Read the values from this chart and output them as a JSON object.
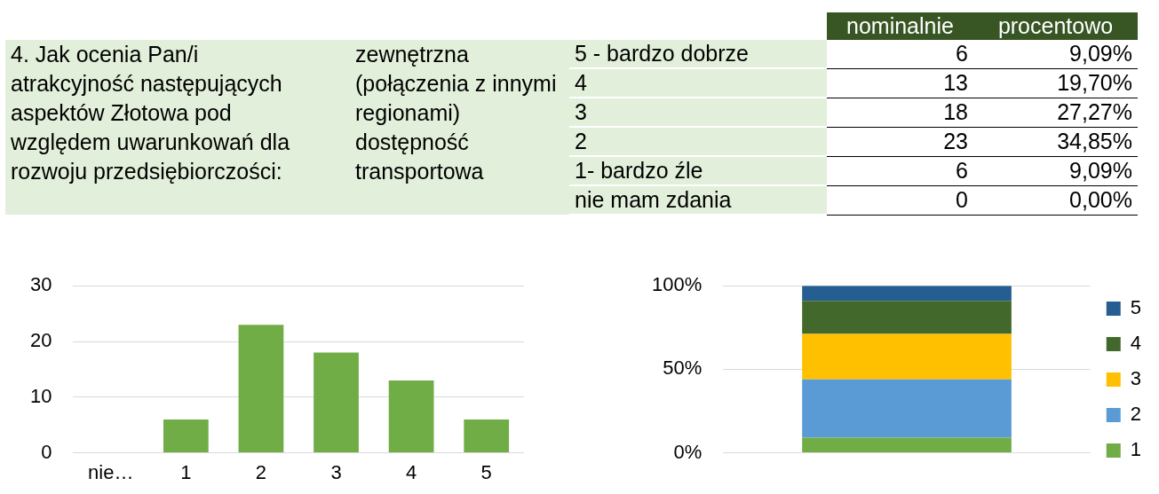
{
  "chart_data": [
    {
      "type": "other",
      "data_labels": true,
      "title": "4. Jak ocenia Pan/i atrakcyjność następujących aspektów Złotowa pod względem uwarunkowań dla rozwoju przedsiębiorczości:",
      "subtitle": "zewnętrzna (połączenia z innymi regionami) dostępność transportowa",
      "categories": [
        "5 - bardzo dobrze",
        "4",
        "3",
        "2",
        "1- bardzo źle",
        "nie mam zdania"
      ],
      "series": [
        {
          "name": "nominalnie",
          "values": [
            6,
            13,
            18,
            23,
            6,
            0
          ]
        },
        {
          "name": "procentowo",
          "values": [
            9.09,
            19.7,
            27.27,
            34.85,
            9.09,
            0.0
          ],
          "value_labels": [
            "9,09%",
            "19,70%",
            "27,27%",
            "34,85%",
            "9,09%",
            "0,00%"
          ]
        }
      ]
    },
    {
      "type": "bar",
      "categories": [
        "nie…",
        "1",
        "2",
        "3",
        "4",
        "5"
      ],
      "values": [
        0,
        6,
        23,
        18,
        13,
        6
      ],
      "color": "#70ad47",
      "ylim": [
        0,
        30
      ],
      "yticks": [
        0,
        10,
        20,
        30
      ],
      "grid": "y"
    },
    {
      "type": "bar",
      "stacked": true,
      "categories": [
        null
      ],
      "ylim": [
        0,
        100
      ],
      "yticks": [
        {
          "value": 0,
          "label": "0%"
        },
        {
          "value": 50,
          "label": "50%"
        },
        {
          "value": 100,
          "label": "100%"
        }
      ],
      "grid": "y",
      "legend": "right",
      "series": [
        {
          "name": "1",
          "color": "#70ad47",
          "values": [
            9.09
          ]
        },
        {
          "name": "2",
          "color": "#5b9bd5",
          "values": [
            34.85
          ]
        },
        {
          "name": "3",
          "color": "#ffc000",
          "values": [
            27.27
          ]
        },
        {
          "name": "4",
          "color": "#43682b",
          "values": [
            19.7
          ]
        },
        {
          "name": "5",
          "color": "#255e91",
          "values": [
            9.09
          ]
        }
      ]
    }
  ]
}
